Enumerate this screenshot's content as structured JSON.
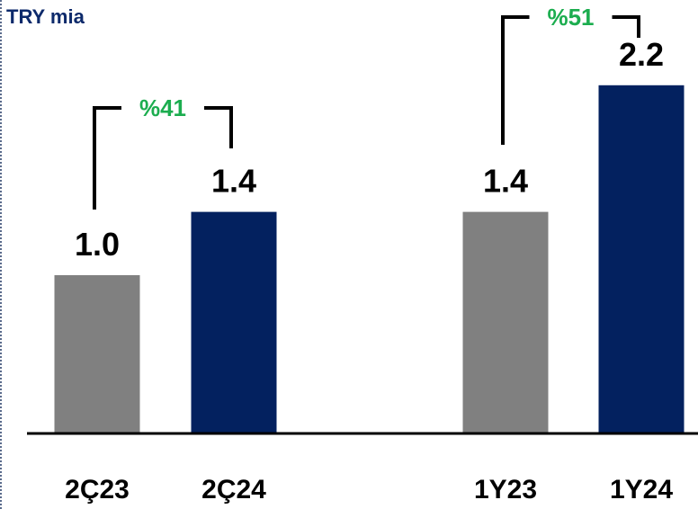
{
  "chart_data": {
    "type": "bar",
    "unit_label": "TRY mia",
    "categories": [
      "2Ç23",
      "2Ç24",
      "1Y23",
      "1Y24"
    ],
    "values": [
      1.0,
      1.4,
      1.4,
      2.2
    ],
    "value_labels": [
      "1.0",
      "1.4",
      "1.4",
      "2.2"
    ],
    "bar_colors": [
      "#808080",
      "#03215f",
      "#808080",
      "#03215f"
    ],
    "ylim": [
      0,
      2.5
    ],
    "growth_annotations": [
      {
        "from": 0,
        "to": 1,
        "label": "%41"
      },
      {
        "from": 2,
        "to": 3,
        "label": "%51"
      }
    ],
    "colors": {
      "growth_text": "#1cad4f",
      "bracket": "#000000",
      "axis": "#000000"
    }
  }
}
